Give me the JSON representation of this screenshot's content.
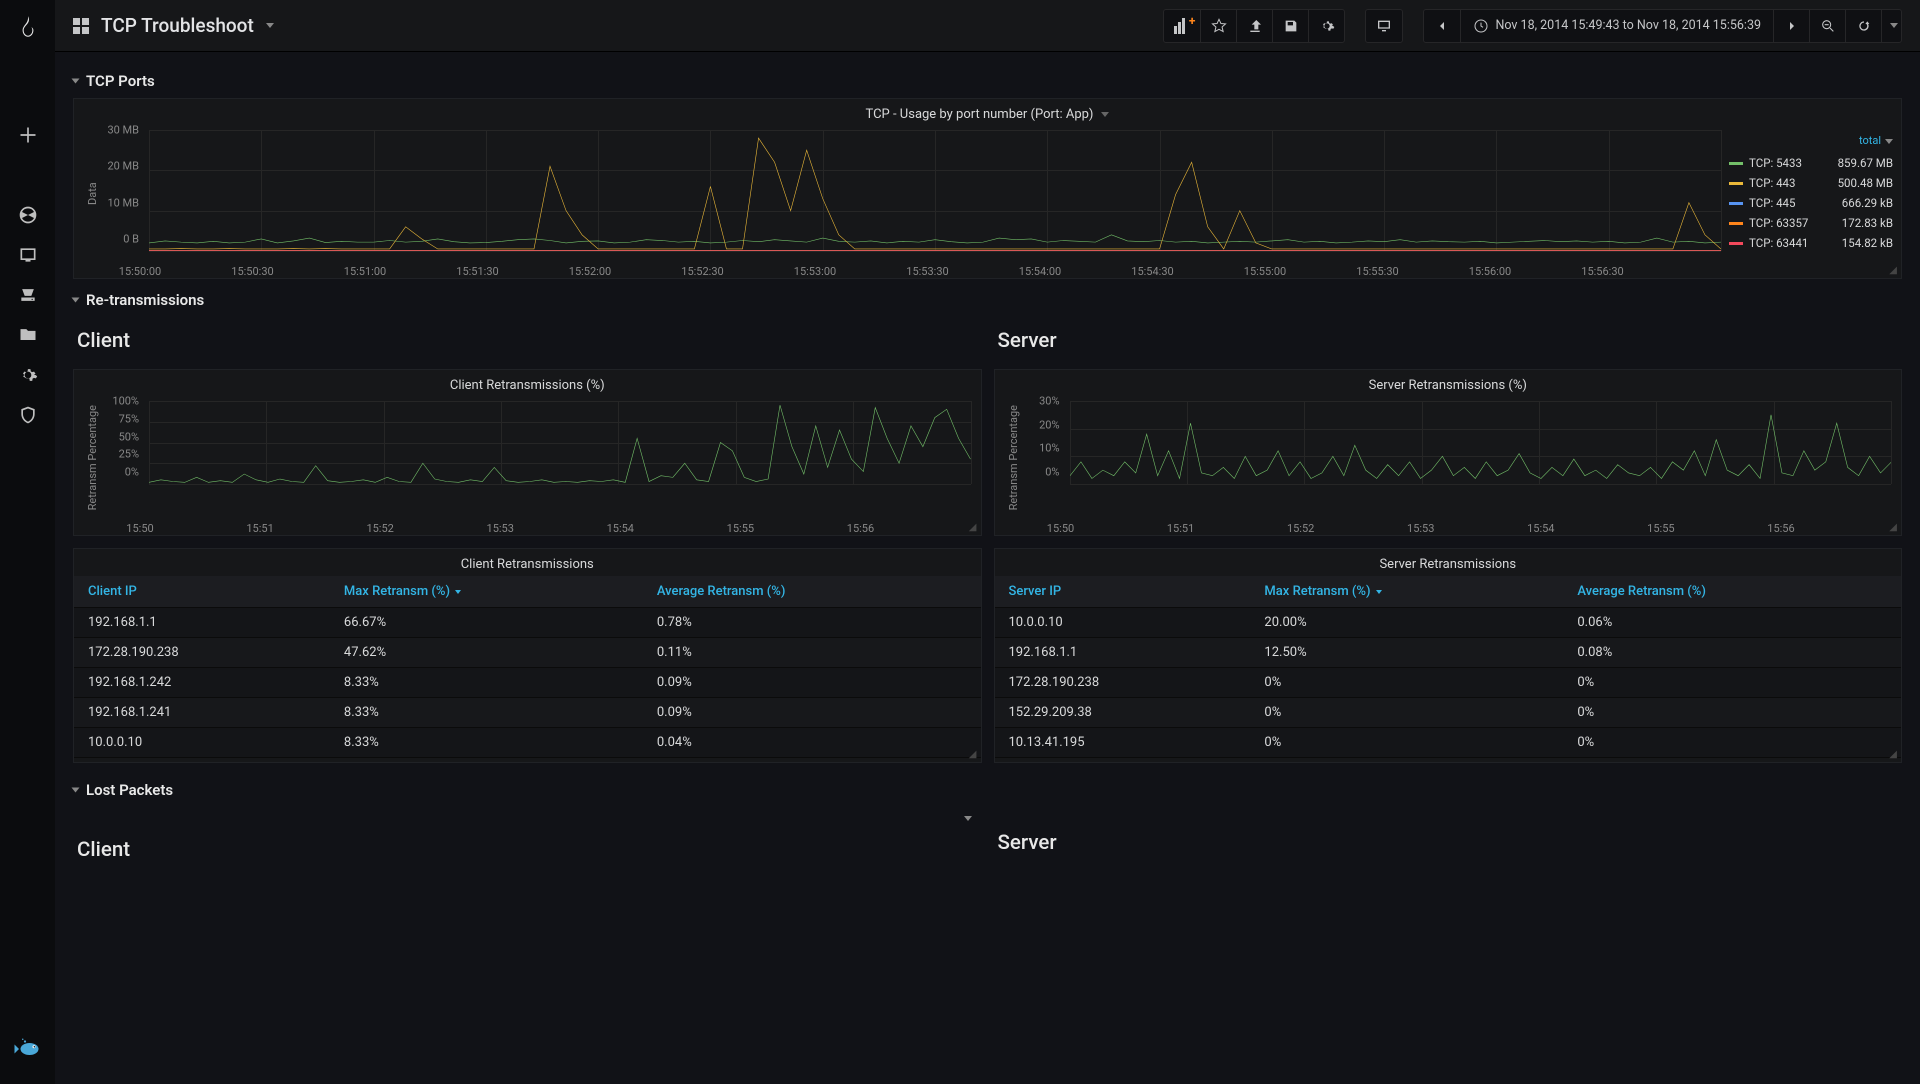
{
  "title": "TCP Troubleshoot",
  "time_range": "Nov 18, 2014 15:49:43 to Nov 18, 2014 15:56:39",
  "rows": {
    "ports": "TCP Ports",
    "retrans": "Re-transmissions",
    "lost": "Lost Packets"
  },
  "subheads": {
    "client": "Client",
    "server": "Server"
  },
  "ports_chart": {
    "title": "TCP - Usage by port number (Port: App)",
    "y_label": "Data",
    "y_ticks": [
      "30 MB",
      "20 MB",
      "10 MB",
      "0 B"
    ],
    "y_max": 30,
    "x_ticks": [
      "15:50:00",
      "15:50:30",
      "15:51:00",
      "15:51:30",
      "15:52:00",
      "15:52:30",
      "15:53:00",
      "15:53:30",
      "15:54:00",
      "15:54:30",
      "15:55:00",
      "15:55:30",
      "15:56:00",
      "15:56:30"
    ],
    "x_count": 14,
    "grid_color": "#262626",
    "legend_head": "total",
    "series": [
      {
        "name": "TCP: 5433",
        "color": "#73bf69",
        "total": "859.67 MB",
        "pts": [
          2,
          2.5,
          2.2,
          2,
          2.4,
          2,
          2.2,
          3,
          2,
          2.5,
          3.2,
          2.1,
          2.4,
          2.2,
          2.2,
          2.6,
          2.2,
          2.4,
          3,
          2.3,
          2,
          2.1,
          2.4,
          2.8,
          3,
          2.6,
          2,
          2.4,
          2.5,
          2,
          2.2,
          2.8,
          2.6,
          2.2,
          2.4,
          2,
          2.2,
          2.6,
          2.3,
          2.8,
          2.5,
          2.2,
          3.2,
          2.4,
          2.2,
          2.5,
          2,
          2.4,
          2.2,
          2.8,
          2.3,
          2,
          2.2,
          3.2,
          2.8,
          3,
          2.2,
          2.6,
          2.4,
          2.2,
          4,
          2.5,
          2.3,
          2.6,
          2.2,
          2.4,
          2,
          2.2,
          2.4,
          2.2,
          2.5,
          2.8,
          2.2,
          2.4,
          2,
          2.2,
          2.5,
          2.3,
          2.8,
          2.2,
          2.5,
          2.3,
          2.2,
          2.4,
          2,
          2.2,
          2.4,
          2.6,
          2.3,
          2.5,
          2.2,
          2.4,
          2,
          2.2,
          3.2,
          2.2,
          2.4,
          2,
          2.2
        ]
      },
      {
        "name": "TCP: 443",
        "color": "#eab839",
        "total": "500.48 MB",
        "pts": [
          0.5,
          0.5,
          0.6,
          0.5,
          0.5,
          0.6,
          0.5,
          0.5,
          0.5,
          0.6,
          0.5,
          0.6,
          0.5,
          0.5,
          0.5,
          0.5,
          6,
          3,
          0.5,
          0.5,
          0.5,
          0.5,
          0.5,
          0.5,
          0.5,
          21,
          10,
          4,
          0.5,
          0.5,
          0.5,
          0.5,
          0.5,
          0.5,
          0.5,
          16,
          0.5,
          0.5,
          28,
          22,
          10,
          25,
          13,
          4,
          0.5,
          0.5,
          0.5,
          0.5,
          0.5,
          0.5,
          0.5,
          0.5,
          0.5,
          0.5,
          0.5,
          0.5,
          0.5,
          0.5,
          0.5,
          0.5,
          0.5,
          0.5,
          0.5,
          0.5,
          14,
          22,
          6,
          0.5,
          10,
          2,
          0.5,
          0.5,
          0.5,
          0.5,
          0.5,
          0.5,
          0.5,
          0.5,
          0.5,
          0.5,
          0.5,
          0.5,
          0.5,
          0.5,
          0.5,
          0.5,
          0.5,
          0.5,
          0.5,
          0.5,
          0.5,
          0.5,
          0.5,
          0.5,
          0.5,
          0.5,
          12,
          4,
          0.5
        ]
      },
      {
        "name": "TCP: 445",
        "color": "#5794f2",
        "total": "666.29 kB",
        "pts": [
          0.1,
          0.1,
          0.1,
          0.1,
          0.1,
          0.1,
          0.1,
          0.1,
          0.1,
          0.1,
          0.1,
          0.1,
          0.1,
          0.1,
          0.1,
          0.1,
          0.1,
          0.1,
          0.1,
          0.1,
          0.1,
          0.1,
          0.1,
          0.1,
          0.1,
          0.1,
          0.1,
          0.1,
          0.1,
          0.1,
          0.1,
          0.1,
          0.1,
          0.1,
          0.1,
          0.1,
          0.1,
          0.1,
          0.1,
          0.1,
          0.1,
          0.1,
          0.1,
          0.1,
          0.1,
          0.1,
          0.1,
          0.1,
          0.1,
          0.1,
          0.1,
          0.1,
          0.1,
          0.1,
          0.1,
          0.1,
          0.1,
          0.1,
          0.1,
          0.1,
          0.1,
          0.1,
          0.1,
          0.1,
          0.1,
          0.1,
          0.1,
          0.1,
          0.1,
          0.1,
          0.1,
          0.1,
          0.1,
          0.1,
          0.1,
          0.1,
          0.1,
          0.1,
          0.1,
          0.1,
          0.1,
          0.1,
          0.1,
          0.1,
          0.1,
          0.1,
          0.1,
          0.1,
          0.1,
          0.1,
          0.1,
          0.1,
          0.1,
          0.1,
          0.1,
          0.1,
          0.1,
          0.1,
          0.1
        ]
      },
      {
        "name": "TCP: 63357",
        "color": "#ff851b",
        "total": "172.83 kB",
        "pts": [
          0.1,
          0.1,
          0.1,
          0.1,
          0.1,
          0.1,
          0.1,
          0.1,
          0.1,
          0.1,
          0.1,
          0.1,
          0.1,
          0.1,
          0.1,
          0.1,
          0.1,
          0.1,
          0.1,
          0.1,
          0.1,
          0.1,
          0.1,
          0.1,
          0.1,
          0.1,
          0.1,
          0.1,
          0.1,
          0.1,
          0.1,
          0.1,
          0.1,
          0.1,
          0.1,
          0.1,
          0.1,
          0.1,
          0.1,
          0.1,
          0.1,
          0.1,
          0.1,
          0.1,
          0.1,
          0.1,
          0.1,
          0.1,
          0.1,
          0.1,
          0.1,
          0.1,
          0.1,
          0.1,
          0.1,
          0.1,
          0.1,
          0.1,
          0.1,
          0.1,
          0.1,
          0.1,
          0.1,
          0.1,
          0.1,
          0.1,
          0.1,
          0.1,
          0.1,
          0.1,
          0.1,
          0.1,
          0.1,
          0.1,
          0.1,
          0.1,
          0.1,
          0.1,
          0.1,
          0.1,
          0.1,
          0.1,
          0.1,
          0.1,
          0.1,
          0.1,
          0.1,
          0.1,
          0.1,
          0.1,
          0.1,
          0.1,
          0.1,
          0.1,
          0.1,
          0.1,
          0.1,
          0.1,
          0.1
        ]
      },
      {
        "name": "TCP: 63441",
        "color": "#f2495c",
        "total": "154.82 kB",
        "pts": [
          0.1,
          0.1,
          0.1,
          0.1,
          0.1,
          0.1,
          0.1,
          0.1,
          0.1,
          0.1,
          0.1,
          0.1,
          0.1,
          0.1,
          0.1,
          0.1,
          0.1,
          0.1,
          0.1,
          0.1,
          0.1,
          0.1,
          0.1,
          0.1,
          0.1,
          0.1,
          0.1,
          0.1,
          0.1,
          0.1,
          0.1,
          0.1,
          0.1,
          0.1,
          0.1,
          0.1,
          0.1,
          0.1,
          0.1,
          0.1,
          0.1,
          0.1,
          0.1,
          0.1,
          0.1,
          0.1,
          0.1,
          0.1,
          0.1,
          0.1,
          0.1,
          0.1,
          0.1,
          0.1,
          0.1,
          0.1,
          0.1,
          0.1,
          0.1,
          0.1,
          0.1,
          0.1,
          0.1,
          0.1,
          0.1,
          0.1,
          0.1,
          0.1,
          0.1,
          0.1,
          0.1,
          0.1,
          0.1,
          0.1,
          0.1,
          0.1,
          0.1,
          0.1,
          0.1,
          0.1,
          0.1,
          0.1,
          0.1,
          0.1,
          0.1,
          0.1,
          0.1,
          0.1,
          0.1,
          0.1,
          0.1,
          0.1,
          0.1,
          0.1,
          0.1,
          0.1,
          0.1,
          0.1,
          0.1
        ]
      }
    ]
  },
  "client_retrans_chart": {
    "title": "Client Retransmissions (%)",
    "y_label": "Retransm Percentage",
    "y_ticks": [
      "100%",
      "75%",
      "50%",
      "25%",
      "0%"
    ],
    "y_max": 100,
    "x_ticks": [
      "15:50",
      "15:51",
      "15:52",
      "15:53",
      "15:54",
      "15:55",
      "15:56"
    ],
    "x_count": 7,
    "series": [
      {
        "name": "client",
        "color": "#73bf69",
        "pts": [
          2,
          5,
          3,
          2,
          8,
          2,
          4,
          2,
          12,
          5,
          2,
          6,
          3,
          2,
          22,
          4,
          2,
          3,
          5,
          2,
          8,
          3,
          2,
          25,
          6,
          3,
          2,
          5,
          3,
          20,
          4,
          2,
          3,
          5,
          2,
          3,
          2,
          4,
          3,
          5,
          2,
          55,
          3,
          10,
          8,
          25,
          5,
          3,
          50,
          40,
          8,
          3,
          6,
          95,
          45,
          12,
          70,
          20,
          65,
          30,
          15,
          92,
          55,
          25,
          70,
          45,
          80,
          90,
          55,
          30
        ]
      }
    ]
  },
  "server_retrans_chart": {
    "title": "Server Retransmissions (%)",
    "y_label": "Retransm Percentage",
    "y_ticks": [
      "30%",
      "20%",
      "10%",
      "0%"
    ],
    "y_max": 30,
    "x_ticks": [
      "15:50",
      "15:51",
      "15:52",
      "15:53",
      "15:54",
      "15:55",
      "15:56"
    ],
    "x_count": 7,
    "series": [
      {
        "name": "server",
        "color": "#73bf69",
        "pts": [
          3,
          8,
          2,
          5,
          3,
          8,
          4,
          18,
          3,
          12,
          2,
          22,
          4,
          3,
          6,
          2,
          10,
          3,
          5,
          12,
          3,
          8,
          2,
          4,
          10,
          3,
          14,
          5,
          2,
          7,
          3,
          8,
          2,
          5,
          10,
          3,
          6,
          2,
          8,
          3,
          5,
          11,
          4,
          2,
          6,
          3,
          9,
          3,
          5,
          2,
          7,
          4,
          3,
          6,
          2,
          8,
          5,
          12,
          3,
          16,
          5,
          3,
          7,
          2,
          25,
          4,
          3,
          12,
          5,
          8,
          22,
          6,
          3,
          10,
          4,
          8
        ]
      }
    ]
  },
  "client_table": {
    "title": "Client Retransmissions",
    "cols": [
      "Client IP",
      "Max Retransm (%)",
      "Average Retransm (%)"
    ],
    "sort_col": 1,
    "rows": [
      [
        "192.168.1.1",
        "66.67%",
        "0.78%"
      ],
      [
        "172.28.190.238",
        "47.62%",
        "0.11%"
      ],
      [
        "192.168.1.242",
        "8.33%",
        "0.09%"
      ],
      [
        "192.168.1.241",
        "8.33%",
        "0.09%"
      ],
      [
        "10.0.0.10",
        "8.33%",
        "0.04%"
      ]
    ]
  },
  "server_table": {
    "title": "Server Retransmissions",
    "cols": [
      "Server IP",
      "Max Retransm (%)",
      "Average Retransm (%)"
    ],
    "sort_col": 1,
    "rows": [
      [
        "10.0.0.10",
        "20.00%",
        "0.06%"
      ],
      [
        "192.168.1.1",
        "12.50%",
        "0.08%"
      ],
      [
        "172.28.190.238",
        "0%",
        "0%"
      ],
      [
        "152.29.209.38",
        "0%",
        "0%"
      ],
      [
        "10.13.41.195",
        "0%",
        "0%"
      ]
    ]
  }
}
